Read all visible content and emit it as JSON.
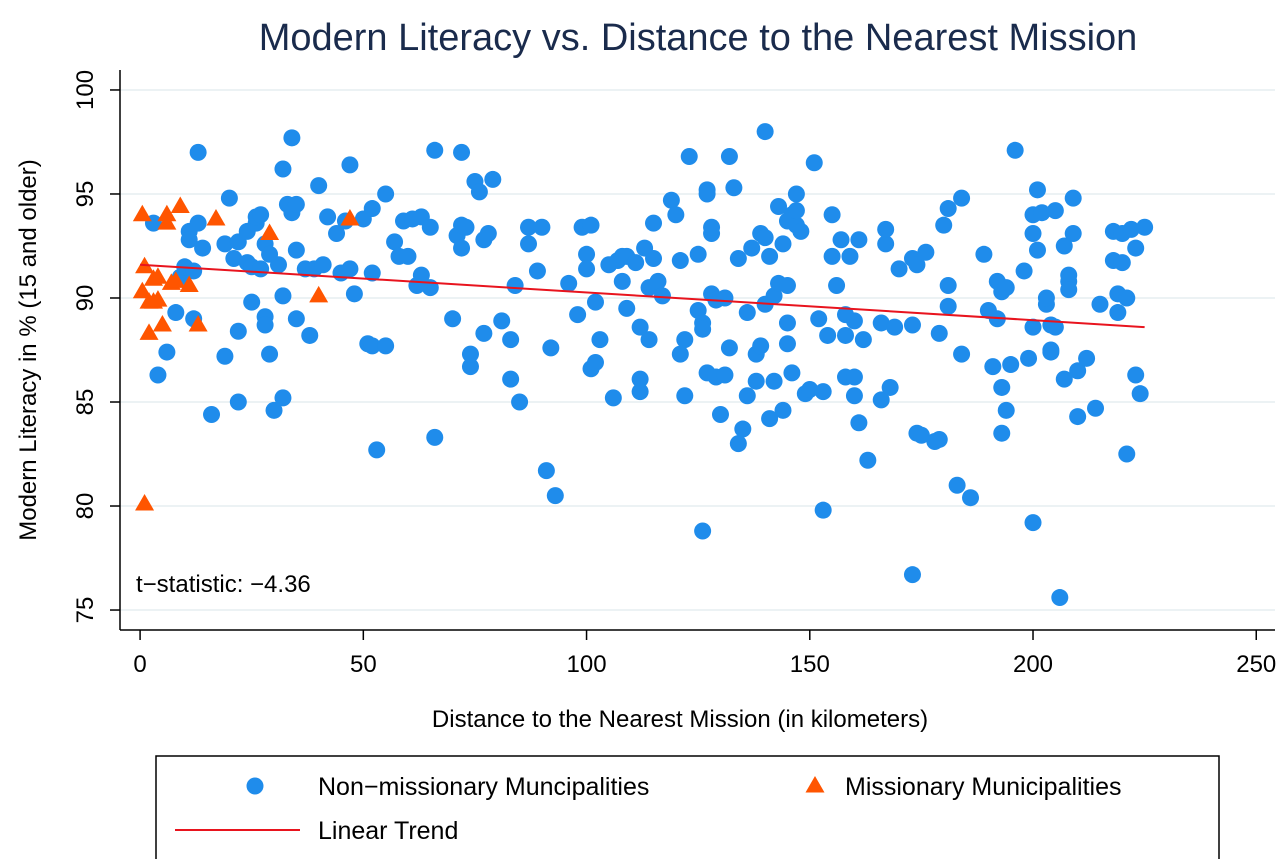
{
  "chart_data": {
    "type": "scatter",
    "title": "Modern Literacy vs. Distance to the Nearest Mission",
    "x_label": "Distance to the Nearest Mission (in kilometers)",
    "y_label": "Modern Literacy in % (15 and older)",
    "annotation": "t−statistic: −4.36",
    "xlim": [
      -4.5,
      254.2
    ],
    "ylim": [
      74.04,
      100.96
    ],
    "xticks": [
      0,
      50,
      100,
      150,
      200,
      250
    ],
    "yticks": [
      75,
      80,
      85,
      90,
      95,
      100
    ],
    "grid": true,
    "legend": "bottom",
    "series": [
      {
        "name": "Non−missionary Muncipalities",
        "color": "#1f8ceb",
        "marker": "circle",
        "x": [
          3,
          4,
          6,
          8,
          9,
          10,
          11,
          11,
          12,
          12,
          13,
          13,
          14,
          16,
          19,
          19,
          20,
          21,
          22,
          22,
          22,
          24,
          24,
          25,
          25,
          26,
          26,
          27,
          27,
          28,
          28,
          28,
          29,
          29,
          30,
          31,
          32,
          32,
          32,
          33,
          34,
          34,
          35,
          35,
          35,
          37,
          38,
          39,
          40,
          41,
          42,
          44,
          45,
          46,
          47,
          47,
          48,
          50,
          51,
          52,
          52,
          53,
          52,
          55,
          55,
          57,
          58,
          59,
          60,
          61,
          62,
          63,
          63,
          65,
          65,
          66,
          66,
          70,
          71,
          72,
          72,
          72,
          73,
          74,
          74,
          75,
          76,
          77,
          77,
          78,
          79,
          81,
          83,
          83,
          84,
          85,
          87,
          87,
          89,
          90,
          91,
          92,
          93,
          96,
          98,
          99,
          100,
          100,
          101,
          101,
          102,
          102,
          103,
          105,
          106,
          107,
          108,
          108,
          109,
          109,
          111,
          112,
          112,
          112,
          113,
          114,
          114,
          115,
          115,
          116,
          117,
          119,
          120,
          121,
          121,
          122,
          122,
          123,
          125,
          125,
          126,
          126,
          127,
          127,
          126,
          127,
          128,
          128,
          128,
          129,
          129,
          130,
          131,
          131,
          132,
          132,
          133,
          134,
          134,
          135,
          136,
          136,
          137,
          138,
          138,
          139,
          139,
          140,
          140,
          140,
          141,
          141,
          142,
          142,
          143,
          143,
          144,
          144,
          145,
          145,
          145,
          145,
          146,
          146,
          147,
          147,
          147,
          148,
          149,
          150,
          151,
          152,
          153,
          153,
          154,
          155,
          155,
          156,
          157,
          158,
          158,
          158,
          159,
          160,
          160,
          160,
          161,
          161,
          162,
          163,
          166,
          166,
          167,
          167,
          168,
          169,
          170,
          173,
          173,
          173,
          174,
          174,
          175,
          176,
          178,
          179,
          179,
          180,
          181,
          181,
          181,
          183,
          184,
          184,
          186,
          189,
          190,
          191,
          192,
          192,
          193,
          193,
          193,
          194,
          194,
          195,
          196,
          198,
          199,
          200,
          200,
          200,
          200,
          201,
          201,
          202,
          203,
          203,
          204,
          204,
          204,
          205,
          205,
          206,
          207,
          207,
          208,
          208,
          208,
          209,
          209,
          210,
          210,
          212,
          214,
          215,
          218,
          218,
          219,
          219,
          220,
          220,
          221,
          221,
          222,
          223,
          223,
          224,
          225
        ],
        "values": [
          93.6,
          86.3,
          87.4,
          89.3,
          91,
          91.5,
          93.2,
          92.8,
          91.3,
          89,
          97,
          93.6,
          92.4,
          84.4,
          87.2,
          92.6,
          94.8,
          91.9,
          85,
          88.4,
          92.7,
          91.7,
          93.2,
          89.8,
          91.5,
          93.6,
          93.9,
          94,
          91.4,
          89.1,
          88.7,
          92.6,
          87.3,
          92.1,
          84.6,
          91.6,
          90.1,
          85.2,
          96.2,
          94.5,
          97.7,
          94.1,
          94.5,
          92.3,
          89,
          91.4,
          88.2,
          91.4,
          95.4,
          91.6,
          93.9,
          93.1,
          91.2,
          93.7,
          96.4,
          91.4,
          90.2,
          93.8,
          87.8,
          87.7,
          91.2,
          82.7,
          94.3,
          87.7,
          95,
          92.7,
          92,
          93.7,
          92,
          93.8,
          90.6,
          91.1,
          93.9,
          90.5,
          93.4,
          97.1,
          83.3,
          89,
          93,
          92.4,
          97,
          93.5,
          93.4,
          86.7,
          87.3,
          95.6,
          95.1,
          88.3,
          92.8,
          93.1,
          95.7,
          88.9,
          88,
          86.1,
          90.6,
          85,
          93.4,
          92.6,
          91.3,
          93.4,
          81.7,
          87.6,
          80.5,
          90.7,
          89.2,
          93.4,
          92.1,
          91.4,
          93.5,
          86.6,
          86.9,
          89.8,
          88,
          91.6,
          85.2,
          91.8,
          92,
          90.8,
          92,
          89.5,
          91.7,
          88.6,
          86.1,
          85.5,
          92.4,
          90.5,
          88,
          93.6,
          91.9,
          90.8,
          90.1,
          94.7,
          94,
          91.8,
          87.3,
          88,
          85.3,
          96.8,
          89.4,
          92.1,
          88.8,
          88.5,
          95.2,
          86.4,
          78.8,
          95,
          93.1,
          93.4,
          90.2,
          86.2,
          89.9,
          84.4,
          86.3,
          90,
          96.8,
          87.6,
          95.3,
          83,
          91.9,
          83.7,
          85.3,
          89.3,
          92.4,
          87.3,
          86,
          93.1,
          87.7,
          98,
          89.7,
          92.9,
          92,
          84.2,
          86,
          90.1,
          94.4,
          90.7,
          92.6,
          84.6,
          93.7,
          90.6,
          88.8,
          87.8,
          86.4,
          94,
          95,
          93.5,
          94.2,
          93.2,
          85.4,
          85.6,
          96.5,
          89,
          79.8,
          85.5,
          88.2,
          92,
          94,
          90.6,
          92.8,
          88.2,
          86.2,
          89.2,
          92,
          85.3,
          88.9,
          86.2,
          92.8,
          84,
          88,
          82.2,
          88.8,
          85.1,
          92.6,
          93.3,
          85.7,
          88.6,
          91.4,
          76.7,
          91.9,
          88.7,
          91.6,
          83.5,
          83.4,
          92.2,
          83.1,
          88.3,
          83.2,
          93.5,
          89.6,
          90.6,
          94.3,
          81,
          87.3,
          94.8,
          80.4,
          92.1,
          89.4,
          86.7,
          90.8,
          89,
          85.7,
          90.3,
          83.5,
          90.5,
          84.6,
          86.8,
          97.1,
          91.3,
          87.1,
          79.2,
          93.1,
          94,
          88.6,
          92.3,
          95.2,
          94.1,
          89.7,
          90,
          88.7,
          87.5,
          87.4,
          94.2,
          88.6,
          75.6,
          92.5,
          86.1,
          91.1,
          90.8,
          90.4,
          94.8,
          93.1,
          84.3,
          86.5,
          87.1,
          84.7,
          89.7,
          91.8,
          93.2,
          89.3,
          90.2,
          91.7,
          93.1,
          82.5,
          90,
          93.3,
          86.3,
          92.4,
          85.4,
          93.4
        ]
      },
      {
        "name": "Missionary Municipalities",
        "color": "#ff5500",
        "marker": "triangle",
        "x": [
          0.5,
          1,
          0.5,
          1,
          2,
          2,
          3,
          3,
          4,
          4,
          5,
          6,
          6,
          7,
          8,
          9,
          11,
          13,
          17,
          29,
          40,
          47
        ],
        "values": [
          94,
          91.5,
          90.3,
          80.1,
          88.3,
          89.8,
          90.9,
          89.8,
          89.9,
          91,
          88.7,
          94,
          93.6,
          90.7,
          90.8,
          94.4,
          90.6,
          88.7,
          93.8,
          93.1,
          90.1,
          93.8
        ]
      },
      {
        "name": "Linear Trend",
        "color": "#e8141e",
        "marker": "line",
        "x": [
          0,
          225
        ],
        "values": [
          91.6,
          88.6
        ]
      }
    ]
  }
}
